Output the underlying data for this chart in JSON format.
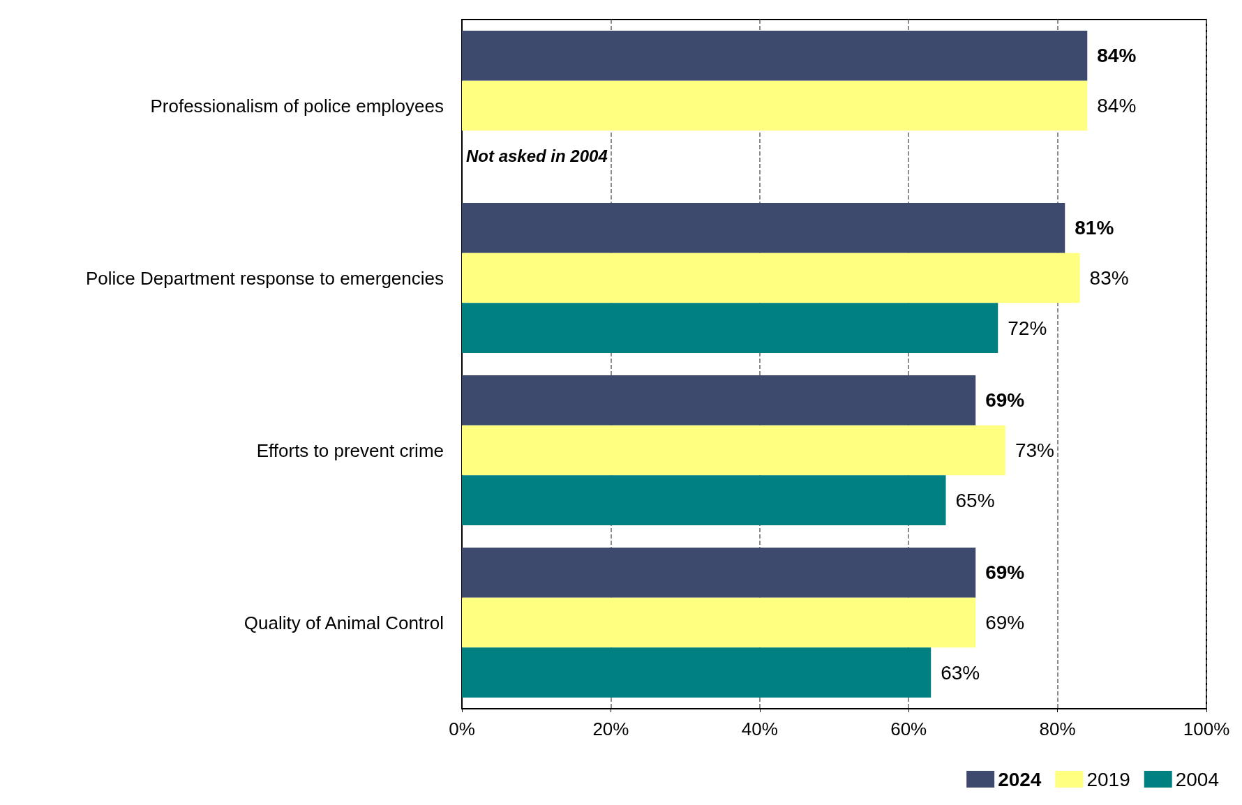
{
  "chart_data": {
    "type": "bar",
    "orientation": "horizontal",
    "categories": [
      "Professionalism of police employees",
      "Police Department response to emergencies",
      "Efforts to prevent crime",
      "Quality of Animal Control"
    ],
    "series": [
      {
        "name": "2024",
        "color": "#3d4a6d",
        "values": [
          84,
          81,
          69,
          69
        ]
      },
      {
        "name": "2019",
        "color": "#ffff80",
        "values": [
          84,
          83,
          73,
          69
        ]
      },
      {
        "name": "2004",
        "color": "#008080",
        "values": [
          null,
          72,
          65,
          63
        ]
      }
    ],
    "xlim": [
      0,
      100
    ],
    "xticks": [
      {
        "value": 0,
        "label": "0%"
      },
      {
        "value": 20,
        "label": "20%"
      },
      {
        "value": 40,
        "label": "40%"
      },
      {
        "value": 60,
        "label": "60%"
      },
      {
        "value": 80,
        "label": "80%"
      },
      {
        "value": 100,
        "label": "100%"
      }
    ],
    "value_labels": [
      [
        "84%",
        "81%",
        "69%",
        "69%"
      ],
      [
        "84%",
        "83%",
        "73%",
        "69%"
      ],
      [
        null,
        "72%",
        "65%",
        "63%"
      ]
    ],
    "annotations": [
      {
        "text": "Not asked in 2004",
        "x": 0,
        "y": "Professionalism of police employees"
      }
    ],
    "grid": "x",
    "legend": "bottom right"
  }
}
